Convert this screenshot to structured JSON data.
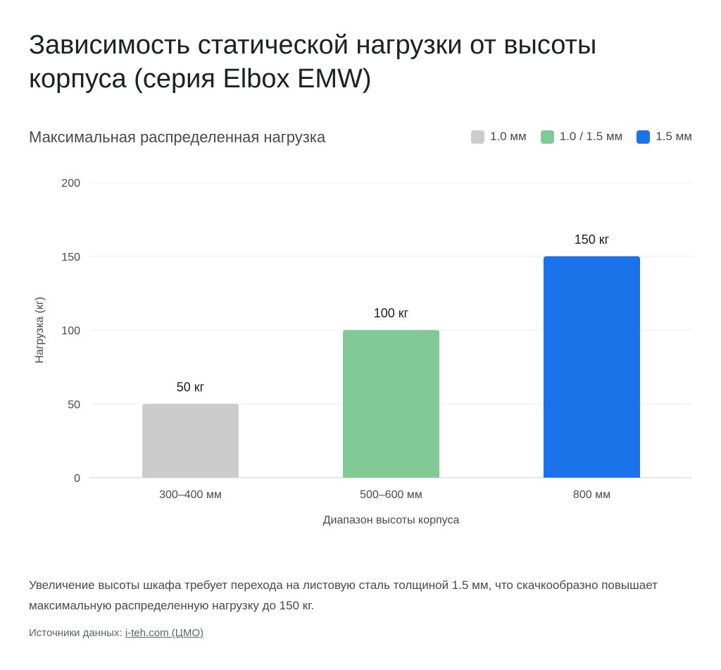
{
  "header": {
    "title": "Зависимость статической нагрузки от высоты корпуса (серия Elbox EMW)"
  },
  "chart_data": {
    "type": "bar",
    "title": "Зависимость статической нагрузки от высоты корпуса (серия Elbox EMW)",
    "subtitle": "Максимальная распределенная нагрузка",
    "categories": [
      "300–400 мм",
      "500–600 мм",
      "800 мм"
    ],
    "values": [
      50,
      100,
      150
    ],
    "data_labels": [
      "50 кг",
      "100 кг",
      "150 кг"
    ],
    "bar_colors": [
      "#cccccc",
      "#81c995",
      "#1a73e8"
    ],
    "xlabel": "Диапазон высоты корпуса",
    "ylabel": "Нагрузка (кг)",
    "ylim": [
      0,
      200
    ],
    "yticks": [
      0,
      50,
      100,
      150,
      200
    ],
    "grid": true,
    "legend_position": "top-right",
    "legend": [
      {
        "label": "1.0 мм",
        "color": "#cccccc"
      },
      {
        "label": "1.0 / 1.5 мм",
        "color": "#81c995"
      },
      {
        "label": "1.5 мм",
        "color": "#1a73e8"
      }
    ]
  },
  "footer": {
    "note": "Увеличение высоты шкафа требует перехода на листовую сталь толщиной 1.5 мм, что скачкообразно повышает максимальную распределенную нагрузку до 150 кг.",
    "source_prefix": "Источники данных: ",
    "source_link": "i-teh.com (ЦМО)"
  }
}
